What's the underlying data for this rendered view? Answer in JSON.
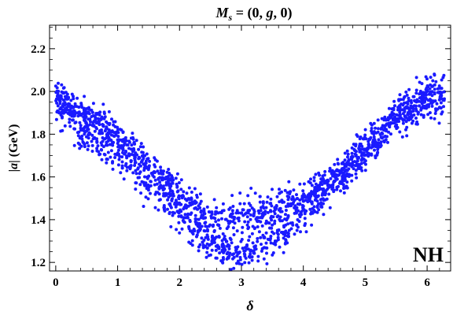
{
  "chart_data": {
    "type": "scatter",
    "title": "M_s = (0, g, 0)",
    "title_parts": {
      "main": "M",
      "sub": "s",
      "rest": " = (0, ",
      "g": "g",
      "end": ", 0)"
    },
    "xlabel": "δ",
    "ylabel_parts": {
      "bar_left": "|",
      "a": "a",
      "bar_right": "|",
      "unit": " (GeV)"
    },
    "annotation": "NH",
    "xlim": [
      -0.1,
      6.38
    ],
    "ylim": [
      1.16,
      2.31
    ],
    "x_ticks": [
      0,
      1,
      2,
      3,
      4,
      5,
      6
    ],
    "x_tick_labels": [
      "0",
      "1",
      "2",
      "3",
      "4",
      "5",
      "6"
    ],
    "y_ticks": [
      1.2,
      1.4,
      1.6,
      1.8,
      2.0,
      2.2
    ],
    "y_tick_labels": [
      "1.2",
      "1.4",
      "1.6",
      "1.8",
      "2.0",
      "2.2"
    ],
    "grid": false,
    "marker_color": "#1a1aff",
    "points_per_band": 1000,
    "bands": [
      {
        "name": "",
        "envelope": [
          [
            0.0,
            1.97,
            0.07
          ],
          [
            0.5,
            1.88,
            0.05
          ],
          [
            1.0,
            1.8,
            0.05
          ],
          [
            1.5,
            1.66,
            0.05
          ],
          [
            2.0,
            1.52,
            0.05
          ],
          [
            2.5,
            1.4,
            0.06
          ],
          [
            3.0,
            1.41,
            0.07
          ],
          [
            3.5,
            1.44,
            0.06
          ],
          [
            4.0,
            1.51,
            0.06
          ],
          [
            4.5,
            1.6,
            0.06
          ],
          [
            5.0,
            1.7,
            0.05
          ],
          [
            5.5,
            1.86,
            0.05
          ],
          [
            6.0,
            1.97,
            0.08
          ],
          [
            6.28,
            1.97,
            0.08
          ]
        ]
      },
      {
        "name": "",
        "envelope": [
          [
            0.0,
            1.97,
            0.08
          ],
          [
            0.5,
            1.8,
            0.07
          ],
          [
            1.0,
            1.71,
            0.06
          ],
          [
            1.5,
            1.56,
            0.06
          ],
          [
            2.0,
            1.42,
            0.06
          ],
          [
            2.5,
            1.27,
            0.05
          ],
          [
            3.0,
            1.24,
            0.05
          ],
          [
            3.5,
            1.29,
            0.06
          ],
          [
            4.0,
            1.42,
            0.06
          ],
          [
            4.5,
            1.58,
            0.06
          ],
          [
            5.0,
            1.74,
            0.06
          ],
          [
            5.5,
            1.9,
            0.05
          ],
          [
            6.0,
            1.97,
            0.07
          ],
          [
            6.28,
            1.97,
            0.08
          ]
        ]
      }
    ]
  }
}
